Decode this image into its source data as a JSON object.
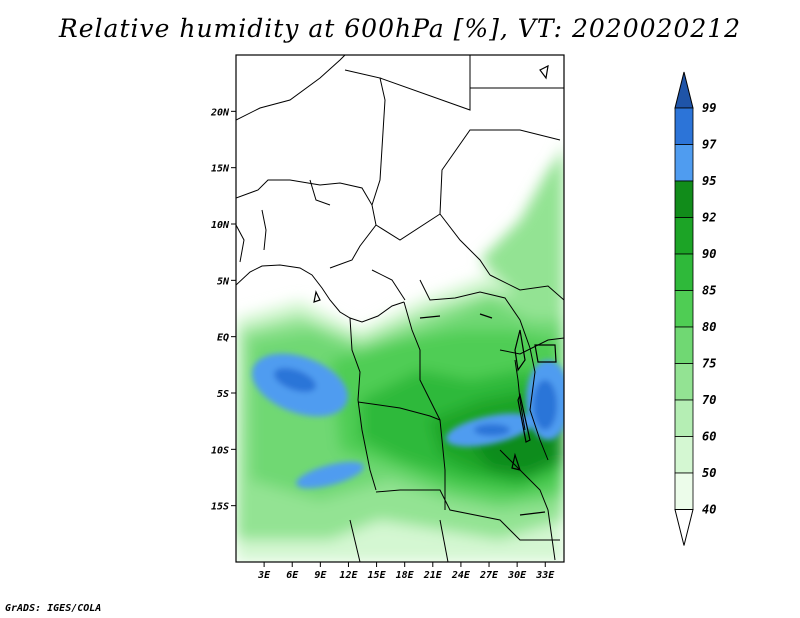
{
  "title": "Relative humidity at 600hPa [%], VT: 2020020212",
  "footer": "GrADS: IGES/COLA",
  "map": {
    "lon_range": [
      0,
      35
    ],
    "lat_range": [
      -20,
      25
    ],
    "x_ticks": [
      3,
      6,
      9,
      12,
      15,
      18,
      21,
      24,
      27,
      30,
      33
    ],
    "x_tick_labels": [
      "3E",
      "6E",
      "9E",
      "12E",
      "15E",
      "18E",
      "21E",
      "24E",
      "27E",
      "30E",
      "33E"
    ],
    "y_ticks": [
      20,
      15,
      10,
      5,
      0,
      -5,
      -10,
      -15
    ],
    "y_tick_labels": [
      "20N",
      "15N",
      "10N",
      "5N",
      "EQ",
      "5S",
      "10S",
      "15S"
    ]
  },
  "colorbar": {
    "levels": [
      "99",
      "97",
      "95",
      "92",
      "90",
      "85",
      "80",
      "75",
      "70",
      "60",
      "50",
      "40"
    ],
    "colors": {
      "above_99": "#1f54a8",
      "97_99": "#2c74d8",
      "95_97": "#4f9cf0",
      "92_95": "#118c1a",
      "90_92": "#1ca426",
      "85_90": "#2fb93a",
      "80_85": "#4fcd54",
      "75_80": "#70d873",
      "70_75": "#93e393",
      "60_70": "#b5eeb4",
      "50_60": "#d4f7d2",
      "40_50": "#ecfcea",
      "below_40": "#ffffff"
    }
  }
}
